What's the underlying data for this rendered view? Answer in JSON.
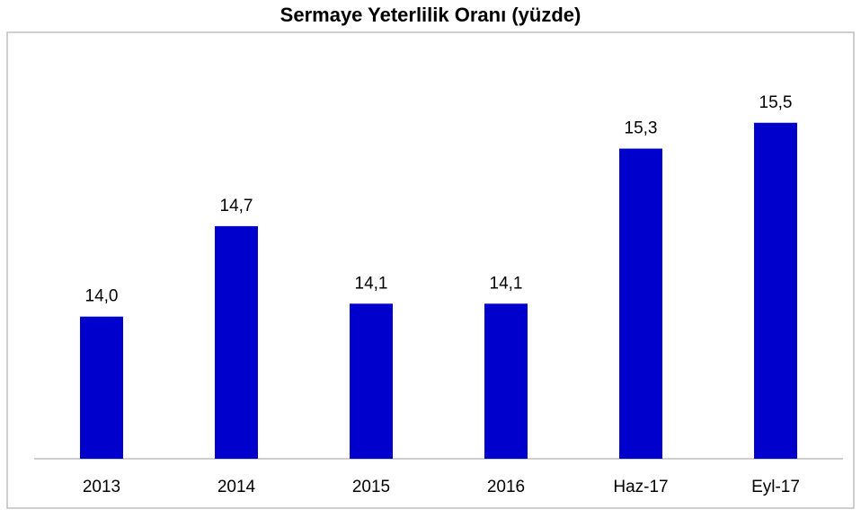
{
  "chart_data": {
    "type": "bar",
    "title": "Sermaye Yeterlilik Oranı (yüzde)",
    "categories": [
      "2013",
      "2014",
      "2015",
      "2016",
      "Haz-17",
      "Eyl-17"
    ],
    "values": [
      14.0,
      14.7,
      14.1,
      14.1,
      15.3,
      15.5
    ],
    "value_labels": [
      "14,0",
      "14,7",
      "14,1",
      "14,1",
      "15,3",
      "15,5"
    ],
    "color": "#0000cc",
    "ylim": [
      12.9,
      16.2
    ]
  }
}
